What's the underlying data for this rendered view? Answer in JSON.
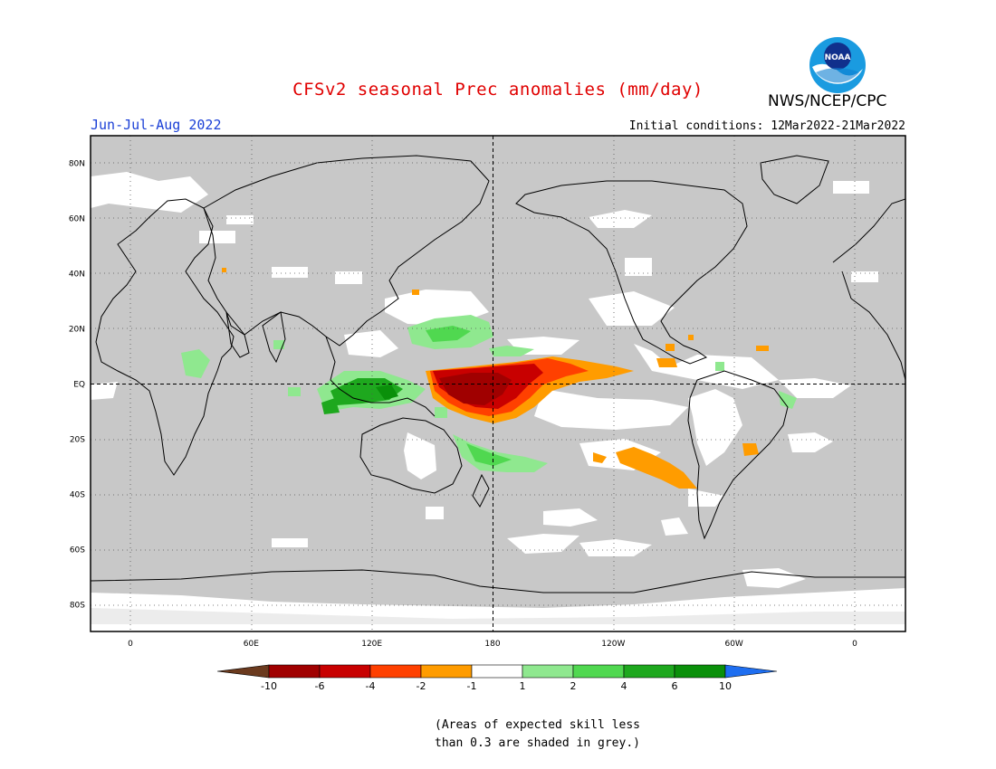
{
  "title": "CFSv2 seasonal Prec anomalies (mm/day)",
  "season": "Jun-Jul-Aug 2022",
  "initial_conditions": "Initial conditions: 12Mar2022-21Mar2022",
  "agency": "NWS/NCEP/CPC",
  "logo_text": "NOAA",
  "footnote": {
    "line1": "(Areas of expected skill less",
    "line2": "than 0.3 are shaded in grey.)"
  },
  "map": {
    "background_color": "#c8c8c8",
    "lat_labels": [
      {
        "lat": 80,
        "label": "80N"
      },
      {
        "lat": 60,
        "label": "60N"
      },
      {
        "lat": 40,
        "label": "40N"
      },
      {
        "lat": 20,
        "label": "20N"
      },
      {
        "lat": 0,
        "label": "EQ"
      },
      {
        "lat": -20,
        "label": "20S"
      },
      {
        "lat": -40,
        "label": "40S"
      },
      {
        "lat": -60,
        "label": "60S"
      },
      {
        "lat": -80,
        "label": "80S"
      }
    ],
    "lon_labels": [
      {
        "lon": 0,
        "label": "0"
      },
      {
        "lon": 60,
        "label": "60E"
      },
      {
        "lon": 120,
        "label": "120E"
      },
      {
        "lon": 180,
        "label": "180"
      },
      {
        "lon": 240,
        "label": "120W"
      },
      {
        "lon": 300,
        "label": "60W"
      },
      {
        "lon": 360,
        "label": "0"
      }
    ],
    "anomaly_regions": [
      {
        "name": "central-pacific-dry-core",
        "category": "-10 to -6",
        "color": "#a00000"
      },
      {
        "name": "central-pacific-dry",
        "category": "-6 to -4",
        "color": "#c80000"
      },
      {
        "name": "east-pacific-dry",
        "category": "-4 to -2",
        "color": "#ff4000"
      },
      {
        "name": "south-pacific-dry",
        "category": "-2 to -1",
        "color": "#ff9c00"
      },
      {
        "name": "maritime-continent-wet",
        "category": "4 to 6",
        "color": "#1ea81e"
      },
      {
        "name": "west-pacific-wet",
        "category": "1 to 2",
        "color": "#8fe88f"
      }
    ]
  },
  "colorbar": {
    "colors": [
      "#6b3a1e",
      "#a00000",
      "#c80000",
      "#ff4000",
      "#ff9c00",
      "#ffffff",
      "#8fe88f",
      "#50d850",
      "#1ea81e",
      "#0a900a",
      "#1e6ef0"
    ],
    "labels": [
      "-10",
      "-6",
      "-4",
      "-2",
      "-1",
      "1",
      "2",
      "4",
      "6",
      "10"
    ]
  }
}
